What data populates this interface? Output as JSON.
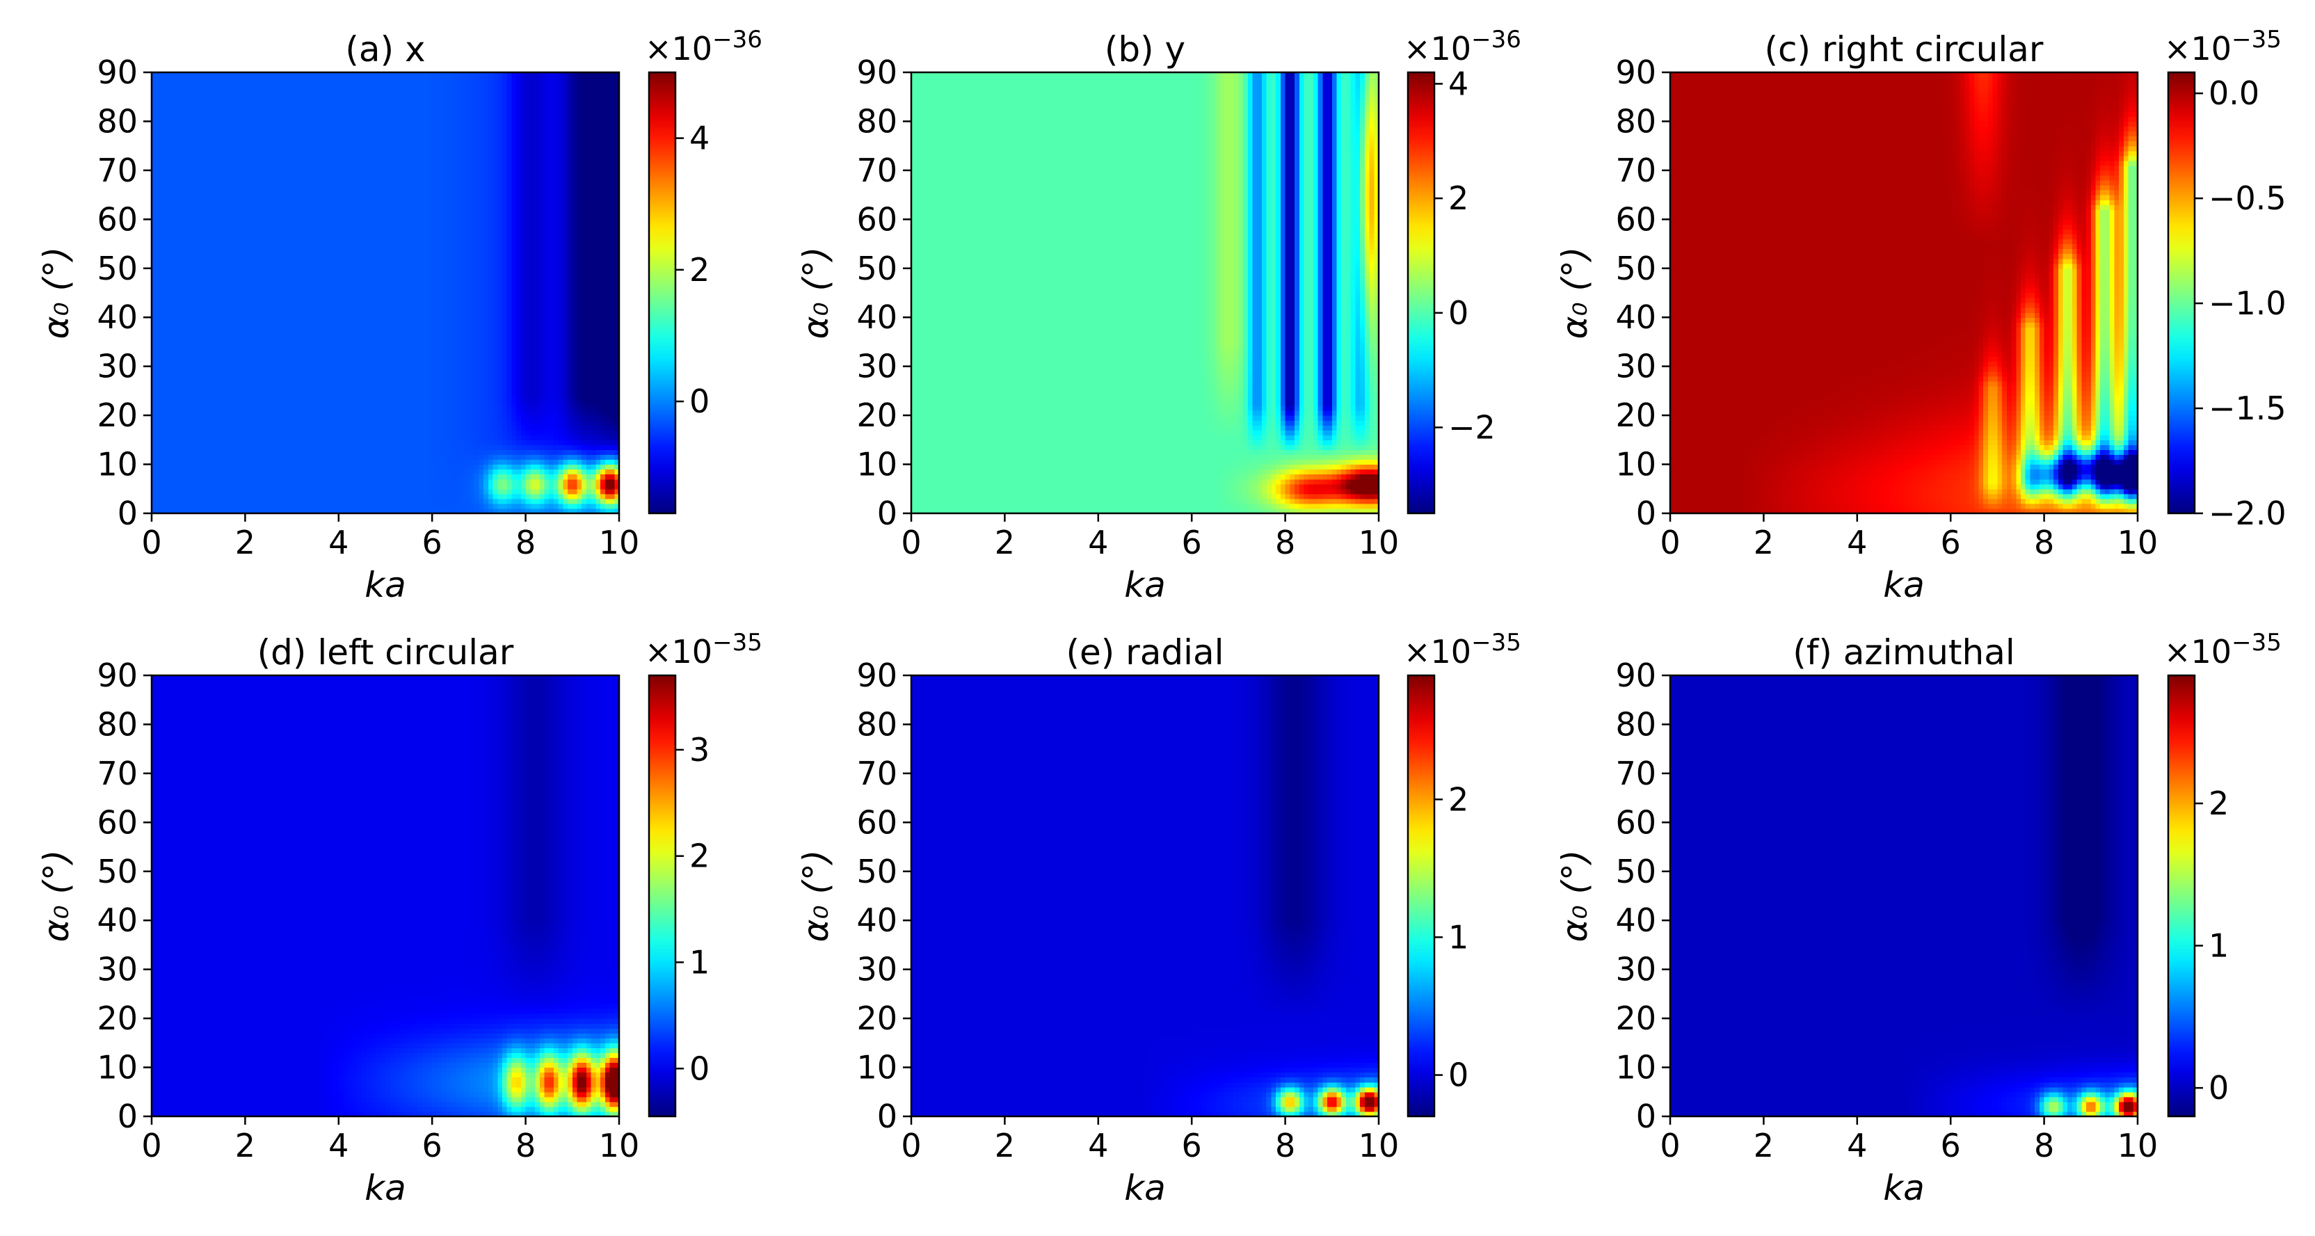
{
  "chart_data": [
    {
      "type": "heatmap",
      "panel": "a",
      "title": "(a) x",
      "xlabel": "ka",
      "ylabel": "α₀ (°)",
      "xlim": [
        0,
        10
      ],
      "ylim": [
        0,
        90
      ],
      "xticks": [
        0,
        2,
        4,
        6,
        8,
        10
      ],
      "yticks": [
        0,
        10,
        20,
        30,
        40,
        50,
        60,
        70,
        80,
        90
      ],
      "colormap": "jet",
      "colorbar": {
        "exponent": "-36",
        "range": [
          -1.7,
          5.0
        ],
        "ticks": [
          0,
          2,
          4
        ]
      },
      "features": {
        "background": -0.3,
        "hot_spots": [
          {
            "ka": 7.5,
            "alpha": 6,
            "value": 1.5
          },
          {
            "ka": 8.2,
            "alpha": 6,
            "value": 2.0
          },
          {
            "ka": 9.0,
            "alpha": 6,
            "value": 3.5
          },
          {
            "ka": 9.8,
            "alpha": 6,
            "value": 4.8
          }
        ],
        "dark_bands": [
          {
            "ka": 8.1,
            "value": -1.2
          },
          {
            "ka": 9.2,
            "value": -1.5
          },
          {
            "ka": 9.9,
            "value": -1.6
          }
        ]
      }
    },
    {
      "type": "heatmap",
      "panel": "b",
      "title": "(b) y",
      "xlabel": "ka",
      "ylabel": "α₀ (°)",
      "xlim": [
        0,
        10
      ],
      "ylim": [
        0,
        90
      ],
      "xticks": [
        0,
        2,
        4,
        6,
        8,
        10
      ],
      "yticks": [
        0,
        10,
        20,
        30,
        40,
        50,
        60,
        70,
        80,
        90
      ],
      "colormap": "jet",
      "colorbar": {
        "exponent": "-36",
        "range": [
          -3.5,
          4.2
        ],
        "ticks": [
          -2,
          0,
          2,
          4
        ]
      },
      "features": {
        "background": 0.0,
        "hot_spots": [
          {
            "ka": 8.5,
            "alpha": 5,
            "value": 2.5
          },
          {
            "ka": 9.8,
            "alpha": 6,
            "value": 4.0
          },
          {
            "ka": 9.8,
            "alpha": 65,
            "value": 2.2
          }
        ],
        "dark_bands": [
          {
            "ka": 7.4,
            "value": -1.5
          },
          {
            "ka": 8.1,
            "value": -3.3
          },
          {
            "ka": 8.9,
            "value": -3.0
          },
          {
            "ka": 9.6,
            "value": -1.2
          }
        ]
      }
    },
    {
      "type": "heatmap",
      "panel": "c",
      "title": "(c) right circular",
      "xlabel": "ka",
      "ylabel": "α₀ (°)",
      "xlim": [
        0,
        10
      ],
      "ylim": [
        0,
        90
      ],
      "xticks": [
        0,
        2,
        4,
        6,
        8,
        10
      ],
      "yticks": [
        0,
        10,
        20,
        30,
        40,
        50,
        60,
        70,
        80,
        90
      ],
      "colormap": "jet",
      "colorbar": {
        "exponent": "-35",
        "range": [
          -2.0,
          0.1
        ],
        "ticks": [
          0.0,
          -0.5,
          -1.0,
          -1.5,
          -2.0
        ]
      },
      "features": {
        "background": 0.0,
        "cold_spots": [
          {
            "ka": 9.8,
            "alpha": 8,
            "value": -2.0
          },
          {
            "ka": 8.9,
            "alpha": 9,
            "value": -1.6
          },
          {
            "ka": 8.1,
            "alpha": 8,
            "value": -1.3
          }
        ],
        "bands": [
          {
            "ka": 6.9,
            "value": -0.4
          },
          {
            "ka": 7.7,
            "value": -0.6
          },
          {
            "ka": 8.5,
            "value": -0.8
          },
          {
            "ka": 9.3,
            "value": -0.9
          },
          {
            "ka": 9.9,
            "value": -1.0
          }
        ]
      }
    },
    {
      "type": "heatmap",
      "panel": "d",
      "title": "(d) left circular",
      "xlabel": "ka",
      "ylabel": "α₀ (°)",
      "xlim": [
        0,
        10
      ],
      "ylim": [
        0,
        90
      ],
      "xticks": [
        0,
        2,
        4,
        6,
        8,
        10
      ],
      "yticks": [
        0,
        10,
        20,
        30,
        40,
        50,
        60,
        70,
        80,
        90
      ],
      "colormap": "jet",
      "colorbar": {
        "exponent": "-35",
        "range": [
          -0.45,
          3.7
        ],
        "ticks": [
          0,
          1,
          2,
          3
        ]
      },
      "features": {
        "background": 0.0,
        "hot_spots": [
          {
            "ka": 7.8,
            "alpha": 7,
            "value": 1.6
          },
          {
            "ka": 8.5,
            "alpha": 7,
            "value": 2.2
          },
          {
            "ka": 9.2,
            "alpha": 7,
            "value": 2.9
          },
          {
            "ka": 9.9,
            "alpha": 7,
            "value": 3.6
          }
        ]
      }
    },
    {
      "type": "heatmap",
      "panel": "e",
      "title": "(e) radial",
      "xlabel": "ka",
      "ylabel": "α₀ (°)",
      "xlim": [
        0,
        10
      ],
      "ylim": [
        0,
        90
      ],
      "xticks": [
        0,
        2,
        4,
        6,
        8,
        10
      ],
      "yticks": [
        0,
        10,
        20,
        30,
        40,
        50,
        60,
        70,
        80,
        90
      ],
      "colormap": "jet",
      "colorbar": {
        "exponent": "-35",
        "range": [
          -0.3,
          2.9
        ],
        "ticks": [
          0,
          1,
          2
        ]
      },
      "features": {
        "background": 0.0,
        "hot_spots": [
          {
            "ka": 8.1,
            "alpha": 3,
            "value": 1.6
          },
          {
            "ka": 9.0,
            "alpha": 3,
            "value": 2.2
          },
          {
            "ka": 9.8,
            "alpha": 3,
            "value": 2.9
          }
        ]
      }
    },
    {
      "type": "heatmap",
      "panel": "f",
      "title": "(f) azimuthal",
      "xlabel": "ka",
      "ylabel": "α₀ (°)",
      "xlim": [
        0,
        10
      ],
      "ylim": [
        0,
        90
      ],
      "xticks": [
        0,
        2,
        4,
        6,
        8,
        10
      ],
      "yticks": [
        0,
        10,
        20,
        30,
        40,
        50,
        60,
        70,
        80,
        90
      ],
      "colormap": "jet",
      "colorbar": {
        "exponent": "-35",
        "range": [
          -0.2,
          2.9
        ],
        "ticks": [
          0,
          1,
          2
        ]
      },
      "features": {
        "background": 0.0,
        "hot_spots": [
          {
            "ka": 8.2,
            "alpha": 2,
            "value": 1.2
          },
          {
            "ka": 9.0,
            "alpha": 2,
            "value": 1.8
          },
          {
            "ka": 9.8,
            "alpha": 2,
            "value": 2.8
          }
        ]
      }
    }
  ]
}
